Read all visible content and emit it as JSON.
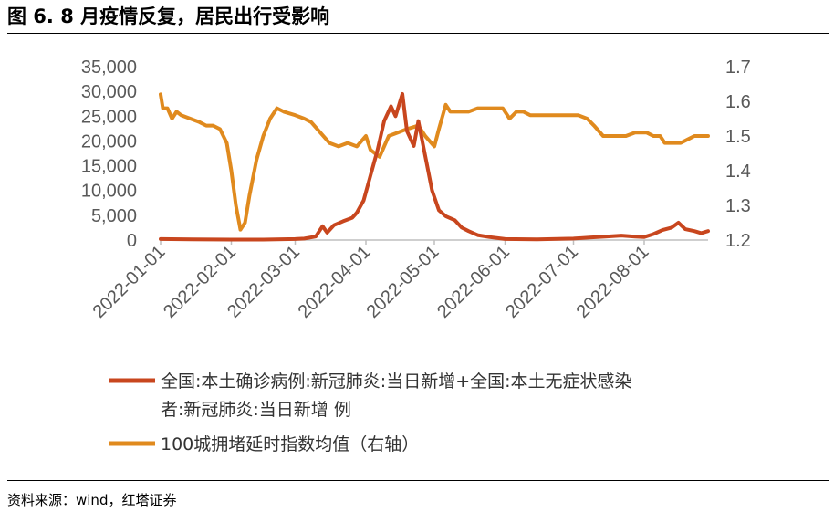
{
  "header": {
    "title": "图 6. 8 月疫情反复，居民出行受影响"
  },
  "footer": {
    "source": "资料来源：wind，红塔证券"
  },
  "chart_data": {
    "type": "line",
    "x_start": "2022-01-01",
    "x_end": "2022-08-29",
    "x_tick_labels": [
      "2022-01-01",
      "2022-02-01",
      "2022-03-01",
      "2022-04-01",
      "2022-05-01",
      "2022-06-01",
      "2022-07-01",
      "2022-08-01"
    ],
    "y_left": {
      "min": 0,
      "max": 35000,
      "ticks": [
        "0",
        "5,000",
        "10,000",
        "15,000",
        "20,000",
        "25,000",
        "30,000",
        "35,000"
      ]
    },
    "y_right": {
      "min": 1.2,
      "max": 1.7,
      "ticks": [
        "1.2",
        "1.3",
        "1.4",
        "1.5",
        "1.6",
        "1.7"
      ]
    },
    "legend_position": "bottom",
    "series": [
      {
        "name_line1": "全国:本土确诊病例:新冠肺炎:当日新增+全国:本土无症状感染",
        "name_line2": "者:新冠肺炎:当日新增 例",
        "axis": "left",
        "color": "#C8461E",
        "points": [
          [
            "2022-01-01",
            200
          ],
          [
            "2022-01-15",
            150
          ],
          [
            "2022-02-01",
            100
          ],
          [
            "2022-02-15",
            100
          ],
          [
            "2022-03-01",
            200
          ],
          [
            "2022-03-05",
            300
          ],
          [
            "2022-03-10",
            700
          ],
          [
            "2022-03-13",
            2800
          ],
          [
            "2022-03-15",
            1500
          ],
          [
            "2022-03-18",
            3000
          ],
          [
            "2022-03-22",
            3800
          ],
          [
            "2022-03-26",
            4500
          ],
          [
            "2022-03-28",
            5500
          ],
          [
            "2022-03-31",
            8000
          ],
          [
            "2022-04-03",
            13000
          ],
          [
            "2022-04-06",
            18000
          ],
          [
            "2022-04-09",
            24000
          ],
          [
            "2022-04-12",
            27000
          ],
          [
            "2022-04-14",
            25000
          ],
          [
            "2022-04-17",
            29500
          ],
          [
            "2022-04-19",
            22000
          ],
          [
            "2022-04-22",
            19000
          ],
          [
            "2022-04-24",
            24000
          ],
          [
            "2022-04-27",
            17000
          ],
          [
            "2022-04-30",
            10000
          ],
          [
            "2022-05-03",
            6000
          ],
          [
            "2022-05-06",
            4800
          ],
          [
            "2022-05-10",
            4000
          ],
          [
            "2022-05-13",
            2500
          ],
          [
            "2022-05-16",
            1800
          ],
          [
            "2022-05-20",
            1000
          ],
          [
            "2022-05-25",
            600
          ],
          [
            "2022-06-01",
            200
          ],
          [
            "2022-06-15",
            150
          ],
          [
            "2022-07-01",
            300
          ],
          [
            "2022-07-08",
            500
          ],
          [
            "2022-07-15",
            700
          ],
          [
            "2022-07-22",
            900
          ],
          [
            "2022-07-28",
            700
          ],
          [
            "2022-08-01",
            600
          ],
          [
            "2022-08-05",
            1200
          ],
          [
            "2022-08-09",
            2000
          ],
          [
            "2022-08-13",
            2500
          ],
          [
            "2022-08-16",
            3500
          ],
          [
            "2022-08-19",
            2200
          ],
          [
            "2022-08-23",
            1800
          ],
          [
            "2022-08-26",
            1400
          ],
          [
            "2022-08-29",
            1800
          ]
        ]
      },
      {
        "name": "100城拥堵延时指数均值（右轴）",
        "axis": "right",
        "color": "#E08A1E",
        "points": [
          [
            "2022-01-01",
            1.62
          ],
          [
            "2022-01-02",
            1.58
          ],
          [
            "2022-01-04",
            1.58
          ],
          [
            "2022-01-06",
            1.55
          ],
          [
            "2022-01-08",
            1.57
          ],
          [
            "2022-01-10",
            1.56
          ],
          [
            "2022-01-14",
            1.55
          ],
          [
            "2022-01-18",
            1.54
          ],
          [
            "2022-01-21",
            1.53
          ],
          [
            "2022-01-24",
            1.53
          ],
          [
            "2022-01-27",
            1.52
          ],
          [
            "2022-01-30",
            1.48
          ],
          [
            "2022-02-01",
            1.4
          ],
          [
            "2022-02-03",
            1.3
          ],
          [
            "2022-02-05",
            1.23
          ],
          [
            "2022-02-07",
            1.25
          ],
          [
            "2022-02-09",
            1.33
          ],
          [
            "2022-02-12",
            1.43
          ],
          [
            "2022-02-15",
            1.5
          ],
          [
            "2022-02-18",
            1.55
          ],
          [
            "2022-02-21",
            1.58
          ],
          [
            "2022-02-24",
            1.57
          ],
          [
            "2022-03-01",
            1.56
          ],
          [
            "2022-03-05",
            1.55
          ],
          [
            "2022-03-08",
            1.54
          ],
          [
            "2022-03-12",
            1.51
          ],
          [
            "2022-03-16",
            1.48
          ],
          [
            "2022-03-20",
            1.47
          ],
          [
            "2022-03-24",
            1.48
          ],
          [
            "2022-03-28",
            1.47
          ],
          [
            "2022-04-01",
            1.5
          ],
          [
            "2022-04-03",
            1.46
          ],
          [
            "2022-04-07",
            1.44
          ],
          [
            "2022-04-11",
            1.5
          ],
          [
            "2022-04-15",
            1.51
          ],
          [
            "2022-04-19",
            1.52
          ],
          [
            "2022-04-24",
            1.53
          ],
          [
            "2022-04-27",
            1.5
          ],
          [
            "2022-05-01",
            1.47
          ],
          [
            "2022-05-03",
            1.52
          ],
          [
            "2022-05-06",
            1.59
          ],
          [
            "2022-05-08",
            1.57
          ],
          [
            "2022-05-12",
            1.57
          ],
          [
            "2022-05-16",
            1.57
          ],
          [
            "2022-05-20",
            1.58
          ],
          [
            "2022-05-25",
            1.58
          ],
          [
            "2022-05-31",
            1.58
          ],
          [
            "2022-06-03",
            1.55
          ],
          [
            "2022-06-06",
            1.57
          ],
          [
            "2022-06-09",
            1.57
          ],
          [
            "2022-06-12",
            1.56
          ],
          [
            "2022-06-17",
            1.56
          ],
          [
            "2022-06-22",
            1.56
          ],
          [
            "2022-06-28",
            1.56
          ],
          [
            "2022-07-03",
            1.56
          ],
          [
            "2022-07-07",
            1.55
          ],
          [
            "2022-07-10",
            1.53
          ],
          [
            "2022-07-14",
            1.5
          ],
          [
            "2022-07-19",
            1.5
          ],
          [
            "2022-07-24",
            1.5
          ],
          [
            "2022-07-28",
            1.51
          ],
          [
            "2022-08-02",
            1.51
          ],
          [
            "2022-08-05",
            1.5
          ],
          [
            "2022-08-08",
            1.5
          ],
          [
            "2022-08-10",
            1.48
          ],
          [
            "2022-08-13",
            1.48
          ],
          [
            "2022-08-17",
            1.48
          ],
          [
            "2022-08-20",
            1.49
          ],
          [
            "2022-08-23",
            1.5
          ],
          [
            "2022-08-29",
            1.5
          ]
        ]
      }
    ]
  }
}
